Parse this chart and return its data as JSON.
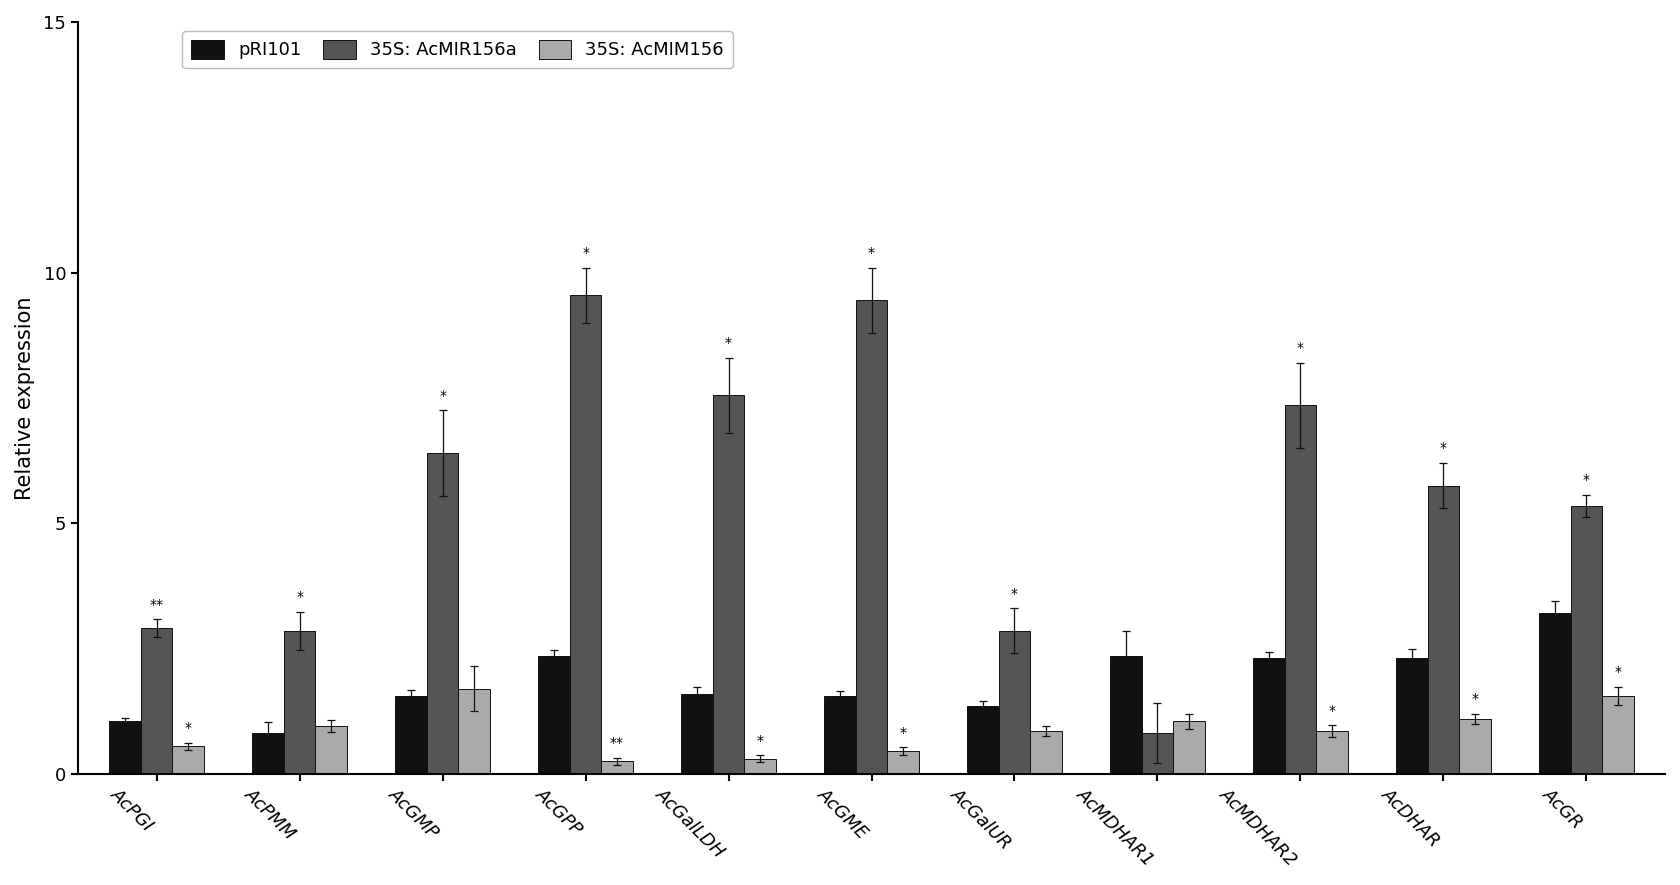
{
  "categories": [
    "AcPGI",
    "AcPMM",
    "AcGMP",
    "AcGPP",
    "AcGalLDH",
    "AcGME",
    "AcGalUR",
    "AcMDHAR1",
    "AcMDHAR2",
    "AcDHAR",
    "AcGR"
  ],
  "series": [
    {
      "label": "pRI101",
      "color": "#111111",
      "values": [
        1.05,
        0.82,
        1.55,
        2.35,
        1.6,
        1.55,
        1.35,
        2.35,
        2.3,
        2.3,
        3.2
      ],
      "errors": [
        0.07,
        0.22,
        0.12,
        0.12,
        0.13,
        0.1,
        0.1,
        0.5,
        0.12,
        0.18,
        0.25
      ]
    },
    {
      "label": "35S: AcMIR156a",
      "color": "#555555",
      "values": [
        2.9,
        2.85,
        6.4,
        9.55,
        7.55,
        9.45,
        2.85,
        0.82,
        7.35,
        5.75,
        5.35
      ],
      "errors": [
        0.18,
        0.38,
        0.85,
        0.55,
        0.75,
        0.65,
        0.45,
        0.6,
        0.85,
        0.45,
        0.22
      ]
    },
    {
      "label": "35S: AcMIM156",
      "color": "#aaaaaa",
      "values": [
        0.55,
        0.95,
        1.7,
        0.25,
        0.3,
        0.45,
        0.85,
        1.05,
        0.85,
        1.1,
        1.55
      ],
      "errors": [
        0.07,
        0.12,
        0.45,
        0.07,
        0.07,
        0.08,
        0.1,
        0.15,
        0.12,
        0.1,
        0.18
      ]
    }
  ],
  "significance": {
    "pRI101": [
      "",
      "",
      "",
      "",
      "",
      "",
      "",
      "",
      "",
      "",
      ""
    ],
    "35S: AcMIR156a": [
      "**",
      "*",
      "*",
      "*",
      "*",
      "*",
      "*",
      "",
      "*",
      "*",
      "*"
    ],
    "35S: AcMIM156": [
      "*",
      "",
      "",
      "**",
      "*",
      "*",
      "",
      "",
      "*",
      "*",
      "*"
    ]
  },
  "ylabel": "Relative expression",
  "ylim": [
    0,
    15
  ],
  "yticks": [
    0,
    5,
    10,
    15
  ],
  "bar_width": 0.22,
  "background_color": "#ffffff",
  "edge_color": "#111111",
  "tick_label_rotation": -45,
  "fontsize_axis_label": 15,
  "fontsize_tick_label": 13,
  "fontsize_legend": 13,
  "fontsize_significance": 10
}
